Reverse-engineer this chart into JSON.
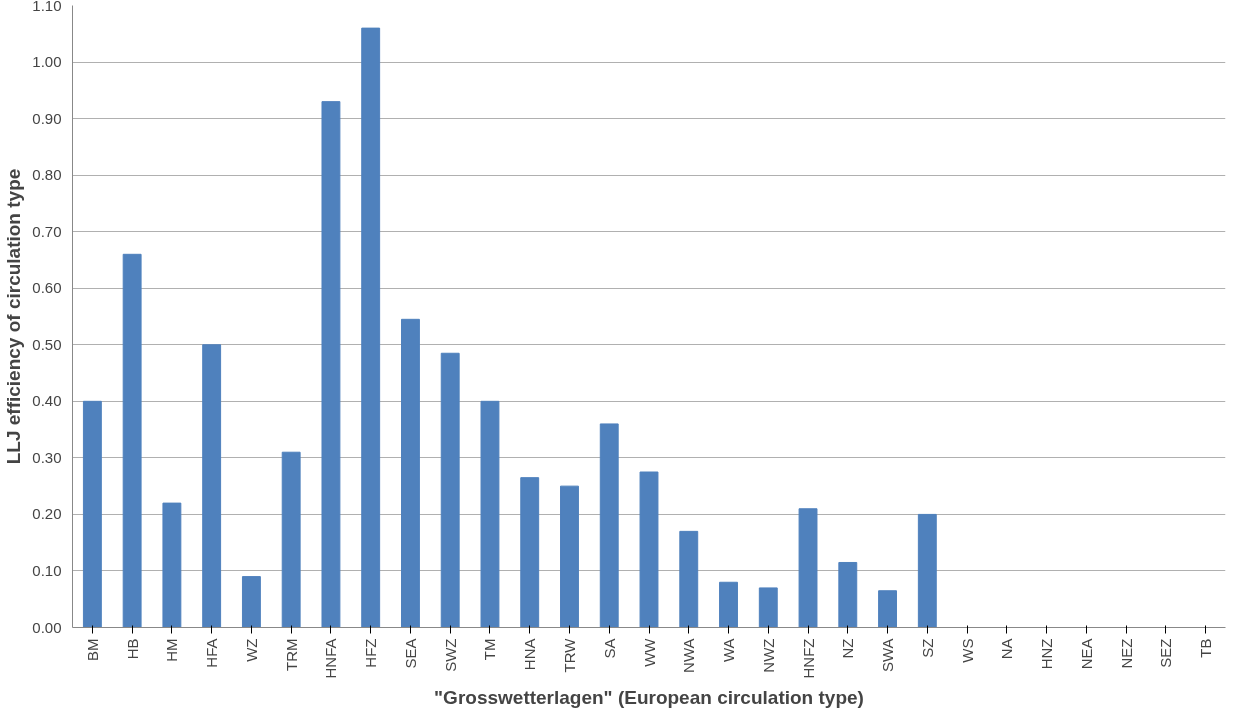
{
  "chart_data": {
    "type": "bar",
    "xlabel": "\"Grosswetterlagen\" (European circulation type)",
    "ylabel": "LLJ efficiency of circulation type",
    "categories": [
      "BM",
      "HB",
      "HM",
      "HFA",
      "WZ",
      "TRM",
      "HNFA",
      "HFZ",
      "SEA",
      "SWZ",
      "TM",
      "HNA",
      "TRW",
      "SA",
      "WW",
      "NWA",
      "WA",
      "NWZ",
      "HNFZ",
      "NZ",
      "SWA",
      "SZ",
      "WS",
      "NA",
      "HNZ",
      "NEA",
      "NEZ",
      "SEZ",
      "TB"
    ],
    "values": [
      0.4,
      0.66,
      0.22,
      0.5,
      0.09,
      0.31,
      0.93,
      1.06,
      0.545,
      0.485,
      0.4,
      0.265,
      0.25,
      0.36,
      0.275,
      0.17,
      0.08,
      0.07,
      0.21,
      0.115,
      0.065,
      0.2,
      0,
      0,
      0,
      0,
      0,
      0,
      0
    ],
    "color": "#4f81bd",
    "ylim": [
      0,
      1.1
    ],
    "yticks": [
      {
        "value": 0,
        "label": "0.00"
      },
      {
        "value": 0.1,
        "label": "0.10"
      },
      {
        "value": 0.2,
        "label": "0.20"
      },
      {
        "value": 0.3,
        "label": "0.30"
      },
      {
        "value": 0.4,
        "label": "0.40"
      },
      {
        "value": 0.5,
        "label": "0.50"
      },
      {
        "value": 0.6,
        "label": "0.60"
      },
      {
        "value": 0.7,
        "label": "0.70"
      },
      {
        "value": 0.8,
        "label": "0.80"
      },
      {
        "value": 0.9,
        "label": "0.90"
      },
      {
        "value": 1.0,
        "label": "1.00"
      },
      {
        "value": 1.1,
        "label": "1.10"
      }
    ],
    "grid": "y"
  }
}
